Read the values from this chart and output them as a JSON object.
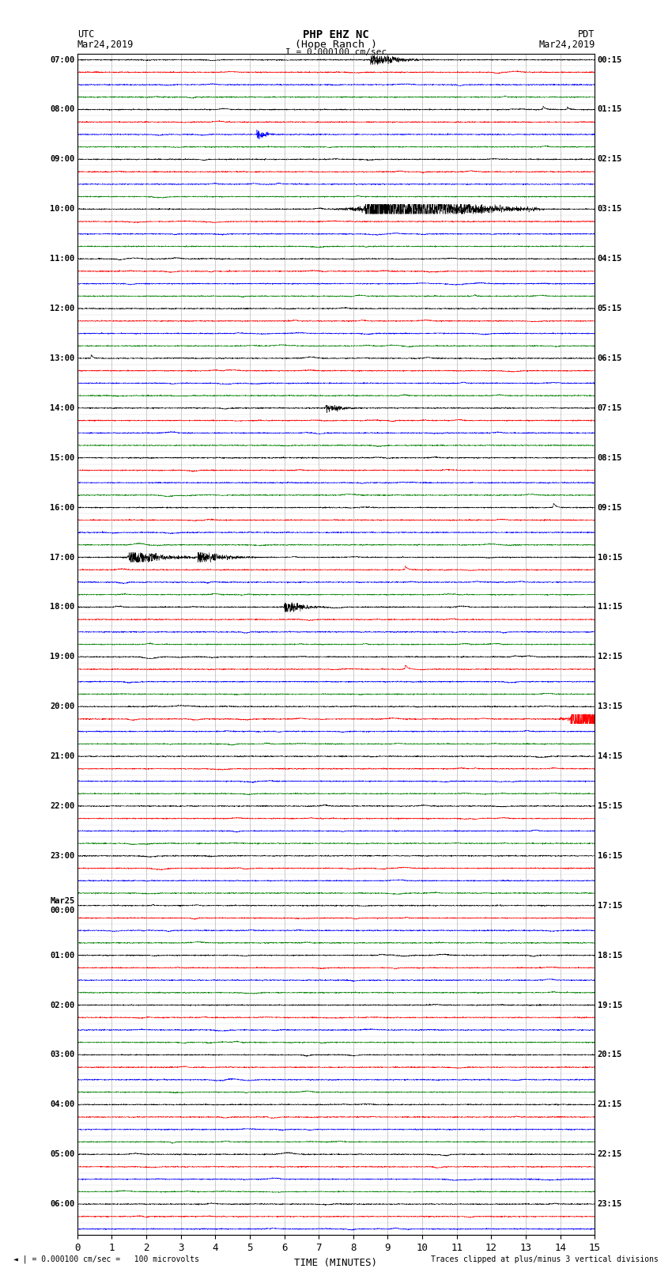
{
  "title_line1": "PHP EHZ NC",
  "title_line2": "(Hope Ranch )",
  "scale_label": "I = 0.000100 cm/sec",
  "left_header_line1": "UTC",
  "left_header_line2": "Mar24,2019",
  "right_header_line1": "PDT",
  "right_header_line2": "Mar24,2019",
  "footer_left": "◄ | = 0.000100 cm/sec =   100 microvolts",
  "footer_right": "Traces clipped at plus/minus 3 vertical divisions",
  "xlabel": "TIME (MINUTES)",
  "xlim": [
    0,
    15
  ],
  "xticks": [
    0,
    1,
    2,
    3,
    4,
    5,
    6,
    7,
    8,
    9,
    10,
    11,
    12,
    13,
    14,
    15
  ],
  "trace_colors": [
    "black",
    "red",
    "blue",
    "green"
  ],
  "background_color": "white",
  "grid_color": "#888888",
  "utc_times": [
    "07:00",
    "",
    "",
    "",
    "08:00",
    "",
    "",
    "",
    "09:00",
    "",
    "",
    "",
    "10:00",
    "",
    "",
    "",
    "11:00",
    "",
    "",
    "",
    "12:00",
    "",
    "",
    "",
    "13:00",
    "",
    "",
    "",
    "14:00",
    "",
    "",
    "",
    "15:00",
    "",
    "",
    "",
    "16:00",
    "",
    "",
    "",
    "17:00",
    "",
    "",
    "",
    "18:00",
    "",
    "",
    "",
    "19:00",
    "",
    "",
    "",
    "20:00",
    "",
    "",
    "",
    "21:00",
    "",
    "",
    "",
    "22:00",
    "",
    "",
    "",
    "23:00",
    "",
    "",
    "",
    "Mar25\n00:00",
    "",
    "",
    "",
    "01:00",
    "",
    "",
    "",
    "02:00",
    "",
    "",
    "",
    "03:00",
    "",
    "",
    "",
    "04:00",
    "",
    "",
    "",
    "05:00",
    "",
    "",
    "",
    "06:00",
    "",
    ""
  ],
  "pdt_times": [
    "00:15",
    "",
    "",
    "",
    "01:15",
    "",
    "",
    "",
    "02:15",
    "",
    "",
    "",
    "03:15",
    "",
    "",
    "",
    "04:15",
    "",
    "",
    "",
    "05:15",
    "",
    "",
    "",
    "06:15",
    "",
    "",
    "",
    "07:15",
    "",
    "",
    "",
    "08:15",
    "",
    "",
    "",
    "09:15",
    "",
    "",
    "",
    "10:15",
    "",
    "",
    "",
    "11:15",
    "",
    "",
    "",
    "12:15",
    "",
    "",
    "",
    "13:15",
    "",
    "",
    "",
    "14:15",
    "",
    "",
    "",
    "15:15",
    "",
    "",
    "",
    "16:15",
    "",
    "",
    "",
    "17:15",
    "",
    "",
    "",
    "18:15",
    "",
    "",
    "",
    "19:15",
    "",
    "",
    "",
    "20:15",
    "",
    "",
    "",
    "21:15",
    "",
    "",
    "",
    "22:15",
    "",
    "",
    "",
    "23:15",
    "",
    ""
  ],
  "special_events": {
    "0": [
      {
        "min": 8.5,
        "amp": 0.35,
        "decay": 80,
        "type": "quake"
      }
    ],
    "4": [
      {
        "min": 13.5,
        "amp": 0.25,
        "decay": 50,
        "type": "spike"
      },
      {
        "min": 14.2,
        "amp": 0.2,
        "decay": 40,
        "type": "spike"
      }
    ],
    "6": [
      {
        "min": 5.2,
        "amp": 0.22,
        "decay": 35,
        "type": "quake"
      }
    ],
    "12": [
      {
        "min": 8.35,
        "amp": 1.2,
        "decay": 200,
        "type": "bigquake"
      },
      {
        "min": 8.55,
        "amp": 1.2,
        "decay": 200,
        "type": "bigquake"
      }
    ],
    "24": [
      {
        "min": 0.4,
        "amp": 0.3,
        "decay": 40,
        "type": "spike"
      }
    ],
    "28": [
      {
        "min": 7.2,
        "amp": 0.22,
        "decay": 50,
        "type": "quake"
      }
    ],
    "36": [
      {
        "min": 13.8,
        "amp": 0.35,
        "decay": 50,
        "type": "spike"
      }
    ],
    "40": [
      {
        "min": 1.5,
        "amp": 0.45,
        "decay": 100,
        "type": "quake"
      },
      {
        "min": 3.5,
        "amp": 0.35,
        "decay": 80,
        "type": "quake"
      }
    ],
    "41": [
      {
        "min": 9.5,
        "amp": 0.28,
        "decay": 50,
        "type": "spike"
      }
    ],
    "44": [
      {
        "min": 6.0,
        "amp": 0.32,
        "decay": 60,
        "type": "quake"
      }
    ],
    "49": [
      {
        "min": 9.5,
        "amp": 0.35,
        "decay": 60,
        "type": "spike"
      }
    ],
    "53": [
      {
        "min": 14.3,
        "amp": 1.1,
        "decay": 120,
        "type": "bigquake"
      }
    ]
  }
}
